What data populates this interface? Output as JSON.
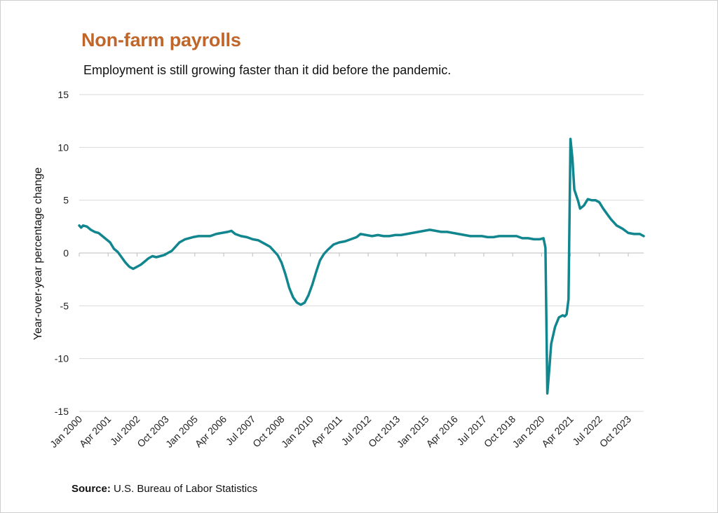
{
  "chart_data": {
    "type": "line",
    "title": "Non-farm payrolls",
    "subtitle": "Employment is still growing faster than it did before the pandemic.",
    "ylabel": "Year-over-year percentage change",
    "xlabel": "",
    "ylim": [
      -15,
      15
    ],
    "yticks": [
      15,
      10,
      5,
      0,
      -5,
      -10,
      -15
    ],
    "grid": true,
    "x_range": [
      "2000-01",
      "2024-06"
    ],
    "xtick_labels": [
      "Jan 2000",
      "Apr 2001",
      "Jul 2002",
      "Oct 2003",
      "Jan 2005",
      "Apr 2006",
      "Jul 2007",
      "Oct 2008",
      "Jan 2010",
      "Apr 2011",
      "Jul 2012",
      "Oct 2013",
      "Jan 2015",
      "Apr 2016",
      "Jul 2017",
      "Oct 2018",
      "Jan 2020",
      "Apr 2021",
      "Jul 2022",
      "Oct 2023"
    ],
    "line_color": "#12868f",
    "series": [
      {
        "points": [
          [
            "2000-01",
            2.6
          ],
          [
            "2000-02",
            2.4
          ],
          [
            "2000-03",
            2.6
          ],
          [
            "2000-05",
            2.5
          ],
          [
            "2000-07",
            2.2
          ],
          [
            "2000-09",
            2.0
          ],
          [
            "2000-11",
            1.9
          ],
          [
            "2001-01",
            1.6
          ],
          [
            "2001-03",
            1.3
          ],
          [
            "2001-05",
            1.0
          ],
          [
            "2001-07",
            0.4
          ],
          [
            "2001-09",
            0.1
          ],
          [
            "2001-11",
            -0.4
          ],
          [
            "2002-01",
            -0.9
          ],
          [
            "2002-03",
            -1.3
          ],
          [
            "2002-05",
            -1.5
          ],
          [
            "2002-07",
            -1.3
          ],
          [
            "2002-09",
            -1.1
          ],
          [
            "2002-11",
            -0.8
          ],
          [
            "2003-01",
            -0.5
          ],
          [
            "2003-03",
            -0.3
          ],
          [
            "2003-05",
            -0.4
          ],
          [
            "2003-07",
            -0.3
          ],
          [
            "2003-09",
            -0.2
          ],
          [
            "2003-11",
            0.0
          ],
          [
            "2004-01",
            0.2
          ],
          [
            "2004-03",
            0.6
          ],
          [
            "2004-05",
            1.0
          ],
          [
            "2004-08",
            1.3
          ],
          [
            "2004-12",
            1.5
          ],
          [
            "2005-03",
            1.6
          ],
          [
            "2005-06",
            1.6
          ],
          [
            "2005-09",
            1.6
          ],
          [
            "2005-12",
            1.8
          ],
          [
            "2006-03",
            1.9
          ],
          [
            "2006-06",
            2.0
          ],
          [
            "2006-08",
            2.1
          ],
          [
            "2006-10",
            1.8
          ],
          [
            "2007-01",
            1.6
          ],
          [
            "2007-04",
            1.5
          ],
          [
            "2007-07",
            1.3
          ],
          [
            "2007-10",
            1.2
          ],
          [
            "2008-01",
            0.9
          ],
          [
            "2008-04",
            0.6
          ],
          [
            "2008-06",
            0.2
          ],
          [
            "2008-08",
            -0.2
          ],
          [
            "2008-10",
            -0.9
          ],
          [
            "2008-12",
            -2.0
          ],
          [
            "2009-02",
            -3.3
          ],
          [
            "2009-04",
            -4.2
          ],
          [
            "2009-06",
            -4.7
          ],
          [
            "2009-08",
            -4.9
          ],
          [
            "2009-10",
            -4.7
          ],
          [
            "2009-12",
            -4.0
          ],
          [
            "2010-02",
            -3.0
          ],
          [
            "2010-04",
            -1.8
          ],
          [
            "2010-06",
            -0.7
          ],
          [
            "2010-08",
            -0.1
          ],
          [
            "2010-10",
            0.3
          ],
          [
            "2011-01",
            0.8
          ],
          [
            "2011-04",
            1.0
          ],
          [
            "2011-07",
            1.1
          ],
          [
            "2011-10",
            1.3
          ],
          [
            "2012-01",
            1.5
          ],
          [
            "2012-03",
            1.8
          ],
          [
            "2012-06",
            1.7
          ],
          [
            "2012-09",
            1.6
          ],
          [
            "2012-12",
            1.7
          ],
          [
            "2013-03",
            1.6
          ],
          [
            "2013-06",
            1.6
          ],
          [
            "2013-09",
            1.7
          ],
          [
            "2013-12",
            1.7
          ],
          [
            "2014-03",
            1.8
          ],
          [
            "2014-06",
            1.9
          ],
          [
            "2014-09",
            2.0
          ],
          [
            "2014-12",
            2.1
          ],
          [
            "2015-03",
            2.2
          ],
          [
            "2015-06",
            2.1
          ],
          [
            "2015-09",
            2.0
          ],
          [
            "2015-12",
            2.0
          ],
          [
            "2016-03",
            1.9
          ],
          [
            "2016-06",
            1.8
          ],
          [
            "2016-09",
            1.7
          ],
          [
            "2016-12",
            1.6
          ],
          [
            "2017-03",
            1.6
          ],
          [
            "2017-06",
            1.6
          ],
          [
            "2017-09",
            1.5
          ],
          [
            "2017-12",
            1.5
          ],
          [
            "2018-03",
            1.6
          ],
          [
            "2018-06",
            1.6
          ],
          [
            "2018-09",
            1.6
          ],
          [
            "2018-12",
            1.6
          ],
          [
            "2019-03",
            1.4
          ],
          [
            "2019-06",
            1.4
          ],
          [
            "2019-09",
            1.3
          ],
          [
            "2019-12",
            1.3
          ],
          [
            "2020-02",
            1.4
          ],
          [
            "2020-03",
            0.5
          ],
          [
            "2020-04",
            -13.3
          ],
          [
            "2020-05",
            -11.0
          ],
          [
            "2020-06",
            -8.6
          ],
          [
            "2020-08",
            -7.0
          ],
          [
            "2020-10",
            -6.1
          ],
          [
            "2020-12",
            -5.9
          ],
          [
            "2021-01",
            -6.0
          ],
          [
            "2021-02",
            -5.8
          ],
          [
            "2021-03",
            -4.4
          ],
          [
            "2021-04",
            10.8
          ],
          [
            "2021-05",
            9.0
          ],
          [
            "2021-06",
            6.0
          ],
          [
            "2021-08",
            4.9
          ],
          [
            "2021-09",
            4.2
          ],
          [
            "2021-11",
            4.5
          ],
          [
            "2022-01",
            5.1
          ],
          [
            "2022-03",
            5.0
          ],
          [
            "2022-05",
            5.0
          ],
          [
            "2022-07",
            4.8
          ],
          [
            "2022-09",
            4.2
          ],
          [
            "2022-11",
            3.7
          ],
          [
            "2023-01",
            3.2
          ],
          [
            "2023-04",
            2.6
          ],
          [
            "2023-07",
            2.3
          ],
          [
            "2023-10",
            1.9
          ],
          [
            "2024-01",
            1.8
          ],
          [
            "2024-04",
            1.8
          ],
          [
            "2024-06",
            1.6
          ]
        ]
      }
    ]
  },
  "source": {
    "label": "Source:",
    "text": " U.S. Bureau of Labor Statistics"
  }
}
